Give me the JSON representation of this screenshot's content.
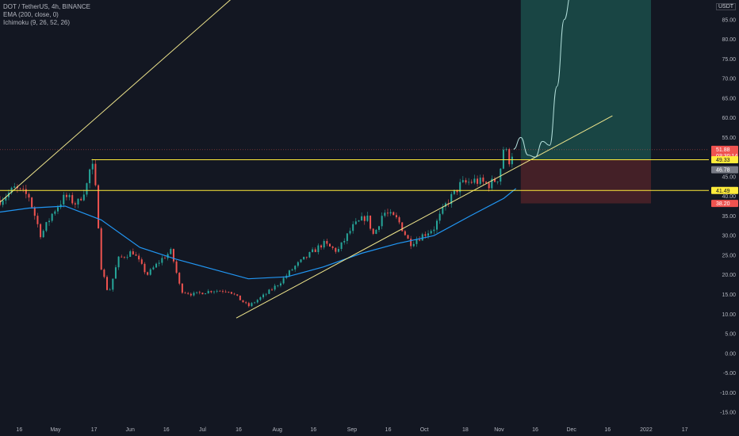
{
  "header": {
    "symbol_line": "DOT / TetherUS, 4h, BINANCE",
    "indicator_1": "EMA (200, close, 0)",
    "indicator_2": "Ichimoku (9, 26, 52, 26)",
    "unit": "USDT"
  },
  "colors": {
    "background": "#131722",
    "up": "#26a69a",
    "down": "#ef5350",
    "ema": "#2196f3",
    "trendline": "#f0e68c",
    "horizontal": "#ffeb3b",
    "projection": "#b2dfdb",
    "profit_zone": "#1b4d4a",
    "loss_zone": "#4a2128"
  },
  "chart_data": {
    "type": "candlestick",
    "ylim": [
      -17,
      90
    ],
    "y_ticks": [
      85,
      80,
      75,
      70,
      65,
      60,
      55,
      50,
      45,
      40,
      35,
      30,
      25,
      20,
      15,
      10,
      5,
      0,
      -5,
      -10,
      -15
    ],
    "y_tick_labels": [
      "85.00",
      "80.00",
      "75.00",
      "70.00",
      "65.00",
      "60.00",
      "55.00",
      "50.00",
      "45.00",
      "40.00",
      "35.00",
      "30.00",
      "25.00",
      "20.00",
      "15.00",
      "10.00",
      "5.00",
      "0.00",
      "-5.00",
      "-10.00",
      "-15.00"
    ],
    "x_ticks": [
      {
        "label": "16",
        "date": "2021-04-16"
      },
      {
        "label": "May",
        "date": "2021-05-01"
      },
      {
        "label": "17",
        "date": "2021-05-17"
      },
      {
        "label": "Jun",
        "date": "2021-06-01"
      },
      {
        "label": "16",
        "date": "2021-06-16"
      },
      {
        "label": "Jul",
        "date": "2021-07-01"
      },
      {
        "label": "16",
        "date": "2021-07-16"
      },
      {
        "label": "Aug",
        "date": "2021-08-01"
      },
      {
        "label": "16",
        "date": "2021-08-16"
      },
      {
        "label": "Sep",
        "date": "2021-09-01"
      },
      {
        "label": "16",
        "date": "2021-09-16"
      },
      {
        "label": "Oct",
        "date": "2021-10-01"
      },
      {
        "label": "18",
        "date": "2021-10-18"
      },
      {
        "label": "Nov",
        "date": "2021-11-01"
      },
      {
        "label": "16",
        "date": "2021-11-16"
      },
      {
        "label": "Dec",
        "date": "2021-12-01"
      },
      {
        "label": "16",
        "date": "2021-12-16"
      },
      {
        "label": "2022",
        "date": "2022-01-01"
      },
      {
        "label": "17",
        "date": "2022-01-17"
      }
    ],
    "xlim": [
      "2021-04-08",
      "2022-01-27"
    ],
    "price_path": [
      [
        "2021-04-08",
        39
      ],
      [
        "2021-04-14",
        42
      ],
      [
        "2021-04-20",
        40
      ],
      [
        "2021-04-25",
        30
      ],
      [
        "2021-04-30",
        36
      ],
      [
        "2021-05-05",
        40
      ],
      [
        "2021-05-10",
        38
      ],
      [
        "2021-05-14",
        43
      ],
      [
        "2021-05-16",
        49
      ],
      [
        "2021-05-18",
        40
      ],
      [
        "2021-05-20",
        22
      ],
      [
        "2021-05-23",
        15
      ],
      [
        "2021-05-27",
        24
      ],
      [
        "2021-06-02",
        26
      ],
      [
        "2021-06-08",
        20
      ],
      [
        "2021-06-14",
        24
      ],
      [
        "2021-06-18",
        26
      ],
      [
        "2021-06-22",
        16
      ],
      [
        "2021-06-27",
        15
      ],
      [
        "2021-07-05",
        16
      ],
      [
        "2021-07-12",
        16
      ],
      [
        "2021-07-20",
        12
      ],
      [
        "2021-07-27",
        15
      ],
      [
        "2021-08-02",
        18
      ],
      [
        "2021-08-08",
        22
      ],
      [
        "2021-08-14",
        25
      ],
      [
        "2021-08-20",
        28
      ],
      [
        "2021-08-26",
        26
      ],
      [
        "2021-09-01",
        32
      ],
      [
        "2021-09-07",
        35
      ],
      [
        "2021-09-10",
        30
      ],
      [
        "2021-09-14",
        36
      ],
      [
        "2021-09-20",
        34
      ],
      [
        "2021-09-25",
        28
      ],
      [
        "2021-09-30",
        30
      ],
      [
        "2021-10-05",
        32
      ],
      [
        "2021-10-10",
        38
      ],
      [
        "2021-10-16",
        43
      ],
      [
        "2021-10-22",
        44
      ],
      [
        "2021-10-28",
        43
      ],
      [
        "2021-11-01",
        45
      ],
      [
        "2021-11-03",
        53
      ],
      [
        "2021-11-05",
        49
      ],
      [
        "2021-11-07",
        51.88
      ]
    ],
    "ema_200": [
      [
        "2021-04-08",
        36
      ],
      [
        "2021-04-20",
        37
      ],
      [
        "2021-05-05",
        37.5
      ],
      [
        "2021-05-20",
        34
      ],
      [
        "2021-06-05",
        27
      ],
      [
        "2021-06-20",
        24
      ],
      [
        "2021-07-05",
        21.5
      ],
      [
        "2021-07-20",
        19
      ],
      [
        "2021-08-05",
        19.5
      ],
      [
        "2021-08-20",
        22
      ],
      [
        "2021-09-05",
        25.5
      ],
      [
        "2021-09-20",
        28
      ],
      [
        "2021-10-05",
        30
      ],
      [
        "2021-10-20",
        35
      ],
      [
        "2021-11-03",
        39.5
      ],
      [
        "2021-11-08",
        42
      ]
    ],
    "trendline_upper": [
      [
        "2021-04-08",
        38.5
      ],
      [
        "2021-07-31",
        100
      ]
    ],
    "trendline_lower": [
      [
        "2021-07-15",
        9
      ],
      [
        "2021-12-18",
        60.5
      ]
    ],
    "projection_path": [
      [
        "2021-11-07",
        52
      ],
      [
        "2021-11-10",
        55
      ],
      [
        "2021-11-13",
        50.5
      ],
      [
        "2021-11-16",
        50
      ],
      [
        "2021-11-19",
        54
      ],
      [
        "2021-11-22",
        53
      ],
      [
        "2021-11-25",
        68
      ],
      [
        "2021-11-28",
        85
      ],
      [
        "2021-12-01",
        92
      ]
    ],
    "horizontal_levels": [
      49.33,
      41.49
    ],
    "resistance_start": "2021-05-16",
    "support_start": "2021-04-08",
    "position": {
      "start": "2021-11-10",
      "end": "2022-01-03",
      "target": 95,
      "entry": 49.33,
      "stop": 38.2
    },
    "price_labels": [
      {
        "value": 51.88,
        "text": "51.88",
        "sub": "03:30:14",
        "color": "#ef5350"
      },
      {
        "value": 49.33,
        "text": "49.33",
        "color": "#ffeb3b"
      },
      {
        "value": 46.78,
        "text": "46.78",
        "color": "#787b86"
      },
      {
        "value": 41.49,
        "text": "41.49",
        "color": "#ffeb3b"
      },
      {
        "value": 38.2,
        "text": "38.20",
        "color": "#ef5350"
      }
    ]
  }
}
